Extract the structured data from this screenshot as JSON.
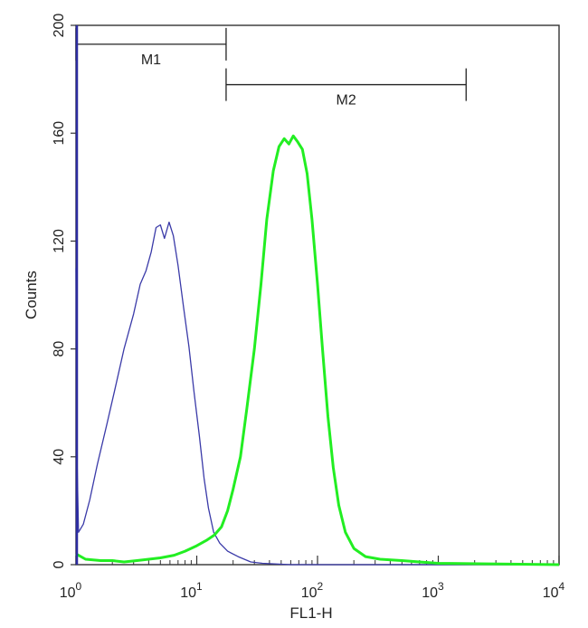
{
  "chart_data": {
    "type": "line",
    "title": "",
    "xlabel": "FL1-H",
    "ylabel": "Counts",
    "xscale": "log",
    "xlim": [
      1,
      10000
    ],
    "ylim": [
      0,
      200
    ],
    "grid": false,
    "x_ticks": [
      {
        "value": 1,
        "base": "10",
        "exp": "0"
      },
      {
        "value": 10,
        "base": "10",
        "exp": "1"
      },
      {
        "value": 100,
        "base": "10",
        "exp": "2"
      },
      {
        "value": 1000,
        "base": "10",
        "exp": "3"
      },
      {
        "value": 10000,
        "base": "10",
        "exp": "4"
      }
    ],
    "y_ticks": [
      {
        "value": 0,
        "label": "0"
      },
      {
        "value": 40,
        "label": "40"
      },
      {
        "value": 80,
        "label": "80"
      },
      {
        "value": 120,
        "label": "120"
      },
      {
        "value": 160,
        "label": "160"
      },
      {
        "value": 200,
        "label": "200"
      }
    ],
    "markers": [
      {
        "label": "M1",
        "x_start": 1,
        "x_end": 17.5,
        "y": 193
      },
      {
        "label": "M2",
        "x_start": 17.5,
        "x_end": 1700,
        "y": 178
      }
    ],
    "series": [
      {
        "color": "#3a3aa8",
        "points": [
          [
            1.0,
            110
          ],
          [
            1.02,
            40
          ],
          [
            1.05,
            12
          ],
          [
            1.15,
            15
          ],
          [
            1.3,
            24
          ],
          [
            1.5,
            37
          ],
          [
            1.8,
            52
          ],
          [
            2.1,
            65
          ],
          [
            2.5,
            80
          ],
          [
            3.0,
            93
          ],
          [
            3.4,
            104
          ],
          [
            3.8,
            109
          ],
          [
            4.2,
            116
          ],
          [
            4.6,
            125
          ],
          [
            5.0,
            126
          ],
          [
            5.4,
            121
          ],
          [
            5.9,
            127
          ],
          [
            6.4,
            122
          ],
          [
            7.0,
            111
          ],
          [
            7.8,
            95
          ],
          [
            8.6,
            81
          ],
          [
            9.5,
            64
          ],
          [
            10.5,
            48
          ],
          [
            11.5,
            32
          ],
          [
            12.5,
            21
          ],
          [
            13.8,
            12
          ],
          [
            15.5,
            8
          ],
          [
            18,
            5
          ],
          [
            22,
            3
          ],
          [
            28,
            1
          ],
          [
            35,
            0.5
          ],
          [
            60,
            0
          ],
          [
            10000,
            0
          ]
        ]
      },
      {
        "color": "#22ee22",
        "points": [
          [
            1.0,
            4
          ],
          [
            1.2,
            2
          ],
          [
            1.6,
            1.5
          ],
          [
            2.0,
            1.5
          ],
          [
            2.5,
            1
          ],
          [
            3.2,
            1.5
          ],
          [
            4,
            2
          ],
          [
            5,
            2.5
          ],
          [
            6.5,
            3.5
          ],
          [
            8,
            5
          ],
          [
            10,
            7
          ],
          [
            12,
            9
          ],
          [
            14,
            11
          ],
          [
            16,
            14
          ],
          [
            18,
            20
          ],
          [
            20,
            28
          ],
          [
            23,
            40
          ],
          [
            26,
            58
          ],
          [
            30,
            80
          ],
          [
            34,
            104
          ],
          [
            38,
            128
          ],
          [
            43,
            146
          ],
          [
            48,
            155
          ],
          [
            53,
            158
          ],
          [
            58,
            156
          ],
          [
            63,
            159
          ],
          [
            68,
            157
          ],
          [
            75,
            154
          ],
          [
            82,
            145
          ],
          [
            90,
            128
          ],
          [
            100,
            104
          ],
          [
            110,
            80
          ],
          [
            122,
            55
          ],
          [
            135,
            36
          ],
          [
            150,
            22
          ],
          [
            170,
            12
          ],
          [
            200,
            6
          ],
          [
            250,
            3
          ],
          [
            330,
            2
          ],
          [
            500,
            1.5
          ],
          [
            700,
            1
          ],
          [
            1000,
            0.5
          ],
          [
            10000,
            0
          ]
        ]
      }
    ]
  }
}
